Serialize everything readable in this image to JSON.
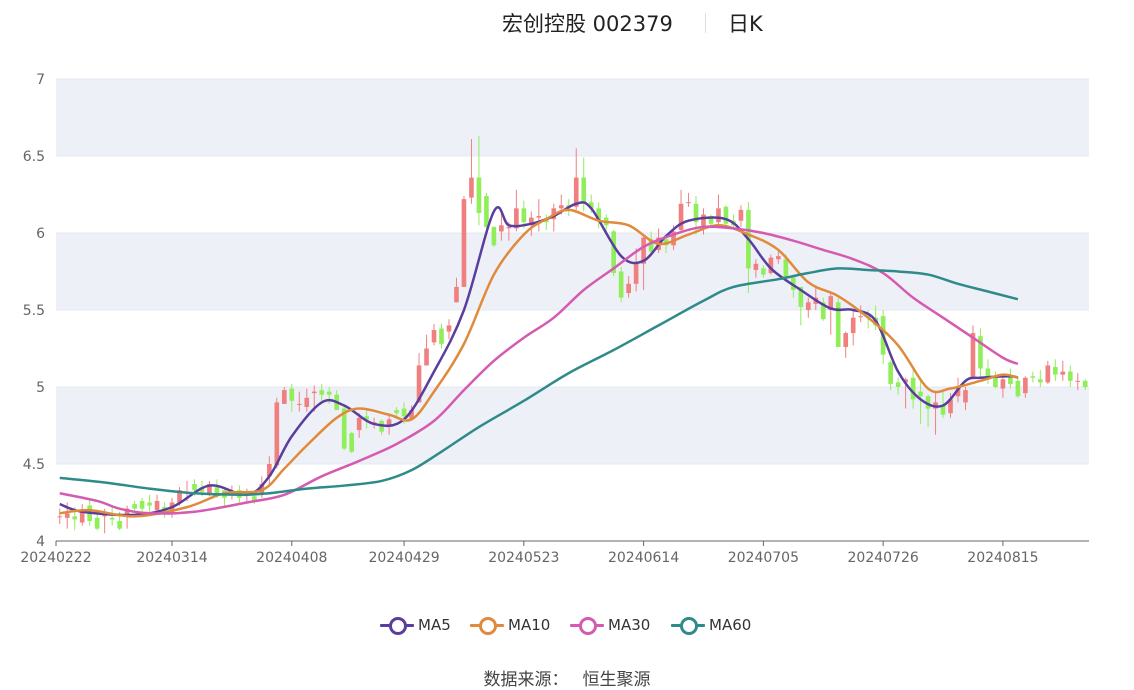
{
  "title": {
    "name": "宏创控股 002379",
    "period": "日K"
  },
  "legend": [
    {
      "name": "MA5",
      "color": "#5a3e9e"
    },
    {
      "name": "MA10",
      "color": "#e08a3c"
    },
    {
      "name": "MA30",
      "color": "#d45bb0"
    },
    {
      "name": "MA60",
      "color": "#2f8a8a"
    }
  ],
  "source": {
    "label": "数据来源：",
    "value": "恒生聚源"
  },
  "colors": {
    "up": "#f08080",
    "down": "#90ee5a",
    "grid": "#e6e9f2",
    "band": "#eef0f8"
  },
  "chart_data": {
    "type": "candlestick",
    "ylim": [
      4,
      7
    ],
    "yticks": [
      "4",
      "4.5",
      "5",
      "5.5",
      "6",
      "6.5",
      "7"
    ],
    "xticks": [
      "20240222",
      "20240314",
      "20240408",
      "20240429",
      "20240523",
      "20240614",
      "20240705",
      "20240726",
      "20240815"
    ],
    "xtick_index": [
      0,
      15,
      31,
      46,
      62,
      78,
      94,
      110,
      126
    ],
    "ohlc": [
      [
        4.16,
        4.16,
        4.11,
        4.21
      ],
      [
        4.15,
        4.18,
        4.08,
        4.25
      ],
      [
        4.16,
        4.14,
        4.07,
        4.22
      ],
      [
        4.12,
        4.19,
        4.1,
        4.24
      ],
      [
        4.23,
        4.13,
        4.1,
        4.27
      ],
      [
        4.15,
        4.08,
        4.07,
        4.19
      ],
      [
        4.16,
        4.18,
        4.05,
        4.21
      ],
      [
        4.15,
        4.14,
        4.1,
        4.22
      ],
      [
        4.13,
        4.08,
        4.07,
        4.19
      ],
      [
        4.16,
        4.21,
        4.08,
        4.23
      ],
      [
        4.24,
        4.21,
        4.19,
        4.26
      ],
      [
        4.26,
        4.21,
        4.17,
        4.28
      ],
      [
        4.25,
        4.23,
        4.19,
        4.3
      ],
      [
        4.2,
        4.26,
        4.17,
        4.3
      ],
      [
        4.22,
        4.2,
        4.15,
        4.25
      ],
      [
        4.18,
        4.25,
        4.15,
        4.28
      ],
      [
        4.25,
        4.33,
        4.23,
        4.35
      ],
      [
        4.31,
        4.32,
        4.26,
        4.39
      ],
      [
        4.37,
        4.33,
        4.29,
        4.4
      ],
      [
        4.35,
        4.32,
        4.29,
        4.39
      ],
      [
        4.31,
        4.37,
        4.29,
        4.39
      ],
      [
        4.35,
        4.3,
        4.28,
        4.4
      ],
      [
        4.33,
        4.28,
        4.23,
        4.35
      ],
      [
        4.3,
        4.32,
        4.27,
        4.36
      ],
      [
        4.33,
        4.28,
        4.25,
        4.36
      ],
      [
        4.3,
        4.3,
        4.25,
        4.34
      ],
      [
        4.29,
        4.26,
        4.24,
        4.31
      ],
      [
        4.3,
        4.37,
        4.28,
        4.42
      ],
      [
        4.42,
        4.5,
        4.36,
        4.55
      ],
      [
        4.49,
        4.9,
        4.47,
        4.93
      ],
      [
        4.89,
        4.98,
        4.89,
        5
      ],
      [
        4.99,
        4.91,
        4.84,
        5.02
      ],
      [
        4.89,
        4.89,
        4.84,
        4.97
      ],
      [
        4.87,
        4.93,
        4.84,
        4.99
      ],
      [
        4.96,
        4.97,
        4.84,
        5.01
      ],
      [
        4.98,
        4.95,
        4.89,
        5.02
      ],
      [
        4.97,
        4.95,
        4.89,
        5
      ],
      [
        4.95,
        4.85,
        4.85,
        4.98
      ],
      [
        4.86,
        4.6,
        4.59,
        4.88
      ],
      [
        4.7,
        4.58,
        4.57,
        4.71
      ],
      [
        4.72,
        4.8,
        4.67,
        4.83
      ],
      [
        4.81,
        4.79,
        4.73,
        4.85
      ],
      [
        4.77,
        4.77,
        4.73,
        4.8
      ],
      [
        4.78,
        4.71,
        4.69,
        4.79
      ],
      [
        4.74,
        4.79,
        4.69,
        4.82
      ],
      [
        4.85,
        4.83,
        4.79,
        4.87
      ],
      [
        4.86,
        4.81,
        4.76,
        4.9
      ],
      [
        4.79,
        4.85,
        4.79,
        4.88
      ],
      [
        4.9,
        5.14,
        4.9,
        5.22
      ],
      [
        5.14,
        5.25,
        5.14,
        5.34
      ],
      [
        5.29,
        5.37,
        5.27,
        5.41
      ],
      [
        5.38,
        5.28,
        5.25,
        5.41
      ],
      [
        5.36,
        5.4,
        5.31,
        5.44
      ],
      [
        5.55,
        5.65,
        5.55,
        5.71
      ],
      [
        5.65,
        6.22,
        5.65,
        6.24
      ],
      [
        6.23,
        6.36,
        6.19,
        6.61
      ],
      [
        6.36,
        6.13,
        6.05,
        6.63
      ],
      [
        6.24,
        6.04,
        6.03,
        6.26
      ],
      [
        6.04,
        5.92,
        5.91,
        6.04
      ],
      [
        6.01,
        6.05,
        5.95,
        6.14
      ],
      [
        6.03,
        6.04,
        5.95,
        6.07
      ],
      [
        6.03,
        6.16,
        6.01,
        6.28
      ],
      [
        6.16,
        6.07,
        6.03,
        6.21
      ],
      [
        6.05,
        6.1,
        5.98,
        6.14
      ],
      [
        6.1,
        6.11,
        6.01,
        6.22
      ],
      [
        6.09,
        6.07,
        6.02,
        6.12
      ],
      [
        6.09,
        6.16,
        6.01,
        6.19
      ],
      [
        6.16,
        6.18,
        6.12,
        6.25
      ],
      [
        6.18,
        6.17,
        6.11,
        6.22
      ],
      [
        6.17,
        6.36,
        6.15,
        6.55
      ],
      [
        6.36,
        6.19,
        6.14,
        6.49
      ],
      [
        6.2,
        6.16,
        6.13,
        6.25
      ],
      [
        6.16,
        6.08,
        6.03,
        6.2
      ],
      [
        6.1,
        6.05,
        5.99,
        6.12
      ],
      [
        6.01,
        5.74,
        5.72,
        6.02
      ],
      [
        5.75,
        5.58,
        5.55,
        5.78
      ],
      [
        5.61,
        5.67,
        5.58,
        5.72
      ],
      [
        5.67,
        5.81,
        5.62,
        5.9
      ],
      [
        5.8,
        5.97,
        5.63,
        5.98
      ],
      [
        5.96,
        5.88,
        5.85,
        6.01
      ],
      [
        5.89,
        5.97,
        5.87,
        6.03
      ],
      [
        5.96,
        5.92,
        5.87,
        5.99
      ],
      [
        5.92,
        6.01,
        5.89,
        6.05
      ],
      [
        6.02,
        6.19,
        6,
        6.28
      ],
      [
        6.2,
        6.2,
        6.17,
        6.26
      ],
      [
        6.19,
        6.07,
        5.99,
        6.24
      ],
      [
        6.04,
        6.12,
        5.99,
        6.16
      ],
      [
        6.11,
        6.06,
        6.03,
        6.12
      ],
      [
        6.07,
        6.16,
        6.04,
        6.25
      ],
      [
        6.17,
        6.06,
        6.03,
        6.18
      ],
      [
        6.08,
        6.05,
        6.02,
        6.12
      ],
      [
        6.08,
        6.15,
        6.04,
        6.18
      ],
      [
        6.15,
        5.77,
        5.61,
        6.2
      ],
      [
        5.76,
        5.8,
        5.71,
        5.83
      ],
      [
        5.77,
        5.73,
        5.71,
        5.79
      ],
      [
        5.74,
        5.84,
        5.73,
        5.86
      ],
      [
        5.83,
        5.85,
        5.8,
        5.88
      ],
      [
        5.83,
        5.71,
        5.69,
        5.86
      ],
      [
        5.71,
        5.63,
        5.58,
        5.73
      ],
      [
        5.65,
        5.52,
        5.4,
        5.65
      ],
      [
        5.5,
        5.55,
        5.45,
        5.58
      ],
      [
        5.54,
        5.58,
        5.5,
        5.66
      ],
      [
        5.55,
        5.44,
        5.43,
        5.58
      ],
      [
        5.5,
        5.59,
        5.34,
        5.62
      ],
      [
        5.55,
        5.26,
        5.26,
        5.58
      ],
      [
        5.26,
        5.35,
        5.19,
        5.36
      ],
      [
        5.35,
        5.45,
        5.27,
        5.5
      ],
      [
        5.46,
        5.46,
        5.42,
        5.53
      ],
      [
        5.46,
        5.45,
        5.38,
        5.5
      ],
      [
        5.45,
        5.4,
        5.37,
        5.53
      ],
      [
        5.46,
        5.21,
        5.15,
        5.5
      ],
      [
        5.16,
        5.02,
        4.98,
        5.17
      ],
      [
        5.03,
        5.0,
        4.95,
        5.06
      ],
      [
        5.03,
        5.05,
        4.86,
        5.06
      ],
      [
        5.06,
        4.92,
        4.86,
        5.11
      ],
      [
        4.97,
        4.94,
        4.76,
        5.05
      ],
      [
        4.94,
        4.86,
        4.74,
        4.95
      ],
      [
        4.86,
        4.9,
        4.69,
        4.97
      ],
      [
        4.88,
        4.82,
        4.8,
        4.98
      ],
      [
        4.83,
        4.92,
        4.8,
        4.96
      ],
      [
        4.94,
        5.0,
        4.9,
        5.06
      ],
      [
        4.9,
        4.98,
        4.85,
        5.0
      ],
      [
        5.06,
        5.35,
        5.05,
        5.4
      ],
      [
        5.33,
        5.12,
        5.06,
        5.38
      ],
      [
        5.12,
        5.06,
        5.02,
        5.18
      ],
      [
        5.06,
        5.0,
        4.99,
        5.1
      ],
      [
        4.99,
        5.05,
        4.93,
        5.06
      ],
      [
        5.07,
        5.02,
        4.99,
        5.12
      ],
      [
        5.04,
        4.94,
        4.93,
        5.07
      ],
      [
        4.96,
        5.06,
        4.93,
        5.07
      ],
      [
        5.07,
        5.06,
        5.03,
        5.1
      ],
      [
        5.05,
        5.03,
        5.0,
        5.11
      ],
      [
        5.03,
        5.14,
        5.02,
        5.17
      ],
      [
        5.13,
        5.08,
        5.04,
        5.18
      ],
      [
        5.08,
        5.1,
        5.04,
        5.17
      ],
      [
        5.1,
        5.04,
        5.0,
        5.14
      ],
      [
        5.04,
        5.04,
        4.98,
        5.09
      ],
      [
        5.04,
        5.0,
        4.98,
        5.05
      ]
    ],
    "series": [
      {
        "name": "MA5"
      },
      {
        "name": "MA10"
      },
      {
        "name": "MA30"
      },
      {
        "name": "MA60"
      }
    ],
    "ma_keypoints": {
      "MA5": [
        [
          0,
          4.24
        ],
        [
          3,
          4.19
        ],
        [
          10,
          4.17
        ],
        [
          15,
          4.22
        ],
        [
          20,
          4.36
        ],
        [
          25,
          4.3
        ],
        [
          28,
          4.42
        ],
        [
          31,
          4.68
        ],
        [
          35,
          4.9
        ],
        [
          38,
          4.88
        ],
        [
          42,
          4.76
        ],
        [
          46,
          4.79
        ],
        [
          50,
          5.1
        ],
        [
          54,
          5.5
        ],
        [
          58,
          6.14
        ],
        [
          60,
          6.05
        ],
        [
          63,
          6.06
        ],
        [
          66,
          6.11
        ],
        [
          69,
          6.19
        ],
        [
          71,
          6.16
        ],
        [
          75,
          5.85
        ],
        [
          78,
          5.82
        ],
        [
          81,
          5.98
        ],
        [
          84,
          6.08
        ],
        [
          89,
          6.09
        ],
        [
          92,
          5.96
        ],
        [
          95,
          5.77
        ],
        [
          99,
          5.63
        ],
        [
          103,
          5.51
        ],
        [
          106,
          5.5
        ],
        [
          109,
          5.43
        ],
        [
          112,
          5.1
        ],
        [
          115,
          4.92
        ],
        [
          118,
          4.88
        ],
        [
          121,
          5.04
        ],
        [
          123,
          5.06
        ],
        [
          127,
          5.07
        ],
        [
          128,
          5.06
        ]
      ],
      "MA10": [
        [
          0,
          4.18
        ],
        [
          4,
          4.2
        ],
        [
          10,
          4.16
        ],
        [
          17,
          4.22
        ],
        [
          22,
          4.31
        ],
        [
          27,
          4.33
        ],
        [
          30,
          4.47
        ],
        [
          33,
          4.62
        ],
        [
          37,
          4.8
        ],
        [
          40,
          4.86
        ],
        [
          44,
          4.82
        ],
        [
          47,
          4.79
        ],
        [
          50,
          4.97
        ],
        [
          54,
          5.28
        ],
        [
          58,
          5.73
        ],
        [
          62,
          5.99
        ],
        [
          65,
          6.09
        ],
        [
          68,
          6.15
        ],
        [
          72,
          6.08
        ],
        [
          76,
          6.05
        ],
        [
          80,
          5.93
        ],
        [
          84,
          5.99
        ],
        [
          88,
          6.05
        ],
        [
          92,
          5.99
        ],
        [
          96,
          5.89
        ],
        [
          100,
          5.68
        ],
        [
          104,
          5.59
        ],
        [
          108,
          5.45
        ],
        [
          112,
          5.27
        ],
        [
          116,
          4.99
        ],
        [
          119,
          4.99
        ],
        [
          123,
          5.04
        ],
        [
          126,
          5.08
        ],
        [
          128,
          5.06
        ]
      ],
      "MA30": [
        [
          0,
          4.31
        ],
        [
          5,
          4.26
        ],
        [
          8,
          4.21
        ],
        [
          12,
          4.18
        ],
        [
          18,
          4.19
        ],
        [
          25,
          4.25
        ],
        [
          30,
          4.3
        ],
        [
          35,
          4.42
        ],
        [
          40,
          4.52
        ],
        [
          45,
          4.63
        ],
        [
          50,
          4.78
        ],
        [
          54,
          4.98
        ],
        [
          58,
          5.17
        ],
        [
          62,
          5.32
        ],
        [
          66,
          5.45
        ],
        [
          70,
          5.63
        ],
        [
          74,
          5.77
        ],
        [
          78,
          5.91
        ],
        [
          82,
          5.99
        ],
        [
          86,
          6.04
        ],
        [
          90,
          6.03
        ],
        [
          94,
          6.0
        ],
        [
          98,
          5.95
        ],
        [
          102,
          5.89
        ],
        [
          106,
          5.83
        ],
        [
          110,
          5.74
        ],
        [
          114,
          5.58
        ],
        [
          118,
          5.45
        ],
        [
          122,
          5.32
        ],
        [
          126,
          5.19
        ],
        [
          128,
          5.15
        ]
      ],
      "MA60": [
        [
          0,
          4.41
        ],
        [
          6,
          4.38
        ],
        [
          12,
          4.34
        ],
        [
          18,
          4.31
        ],
        [
          24,
          4.3
        ],
        [
          28,
          4.31
        ],
        [
          33,
          4.34
        ],
        [
          38,
          4.36
        ],
        [
          43,
          4.39
        ],
        [
          47,
          4.46
        ],
        [
          51,
          4.58
        ],
        [
          56,
          4.74
        ],
        [
          62,
          4.91
        ],
        [
          68,
          5.09
        ],
        [
          74,
          5.24
        ],
        [
          80,
          5.4
        ],
        [
          86,
          5.56
        ],
        [
          90,
          5.65
        ],
        [
          96,
          5.7
        ],
        [
          100,
          5.74
        ],
        [
          104,
          5.77
        ],
        [
          108,
          5.76
        ],
        [
          112,
          5.75
        ],
        [
          116,
          5.73
        ],
        [
          120,
          5.67
        ],
        [
          124,
          5.62
        ],
        [
          128,
          5.57
        ]
      ]
    }
  }
}
